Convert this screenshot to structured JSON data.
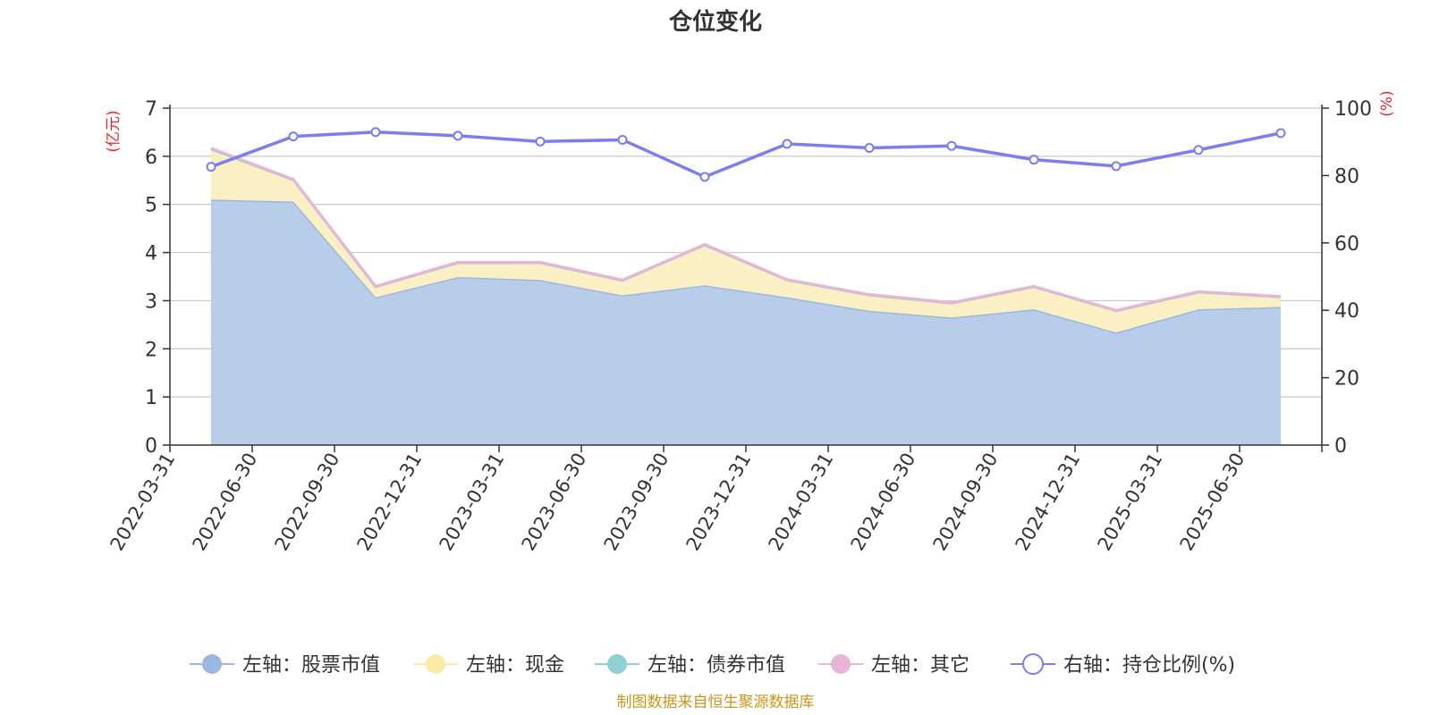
{
  "chart_data": {
    "type": "area",
    "title": "仓位变化",
    "left_axis_unit": "(亿元)",
    "right_axis_unit": "(%)",
    "categories": [
      "2022-03-31",
      "2022-06-30",
      "2022-09-30",
      "2022-12-31",
      "2023-03-31",
      "2023-06-30",
      "2023-09-30",
      "2023-12-31",
      "2024-03-31",
      "2024-06-30",
      "2024-09-30",
      "2024-12-31",
      "2025-03-31",
      "2025-06-30"
    ],
    "left_ylim": [
      0,
      7
    ],
    "left_ticks": [
      0,
      1,
      2,
      3,
      4,
      5,
      6,
      7
    ],
    "right_ylim": [
      0,
      100
    ],
    "right_ticks": [
      0,
      20,
      40,
      60,
      80,
      100
    ],
    "grid": true,
    "legend_position": "bottom",
    "series": [
      {
        "name": "左轴：股票市值",
        "axis": "left",
        "kind": "stacked-area",
        "color": "#9bb8e0",
        "fill": "#b8cdea",
        "values": [
          5.1,
          5.06,
          3.07,
          3.49,
          3.43,
          3.11,
          3.32,
          3.07,
          2.79,
          2.65,
          2.82,
          2.34,
          2.82,
          2.87
        ]
      },
      {
        "name": "左轴：现金",
        "axis": "left",
        "kind": "stacked-area",
        "color": "#faeaa8",
        "fill": "#fbefc4",
        "values": [
          1.05,
          0.45,
          0.22,
          0.3,
          0.36,
          0.31,
          0.84,
          0.36,
          0.33,
          0.3,
          0.47,
          0.45,
          0.36,
          0.21
        ]
      },
      {
        "name": "左轴：债券市值",
        "axis": "left",
        "kind": "stacked-area",
        "color": "#8fd0d4",
        "fill": "#bfe4e6",
        "values": [
          0,
          0,
          0,
          0,
          0,
          0,
          0,
          0,
          0,
          0,
          0,
          0,
          0,
          0
        ]
      },
      {
        "name": "左轴：其它",
        "axis": "left",
        "kind": "stacked-area",
        "color": "#e8b4d8",
        "fill": "#f0cde5",
        "values": [
          0.02,
          0.01,
          0.01,
          0.01,
          0.01,
          0.01,
          0.01,
          0.01,
          0.01,
          0.01,
          0.01,
          0.01,
          0.01,
          0.01
        ]
      },
      {
        "name": "右轴：持仓比例(%)",
        "axis": "right",
        "kind": "line",
        "color": "#7a7ef0",
        "values": [
          82.6,
          91.6,
          92.9,
          91.8,
          90.1,
          90.6,
          79.6,
          89.4,
          88.2,
          88.8,
          84.7,
          82.8,
          87.6,
          92.6
        ]
      }
    ]
  },
  "footer": {
    "source": "制图数据来自恒生聚源数据库"
  }
}
